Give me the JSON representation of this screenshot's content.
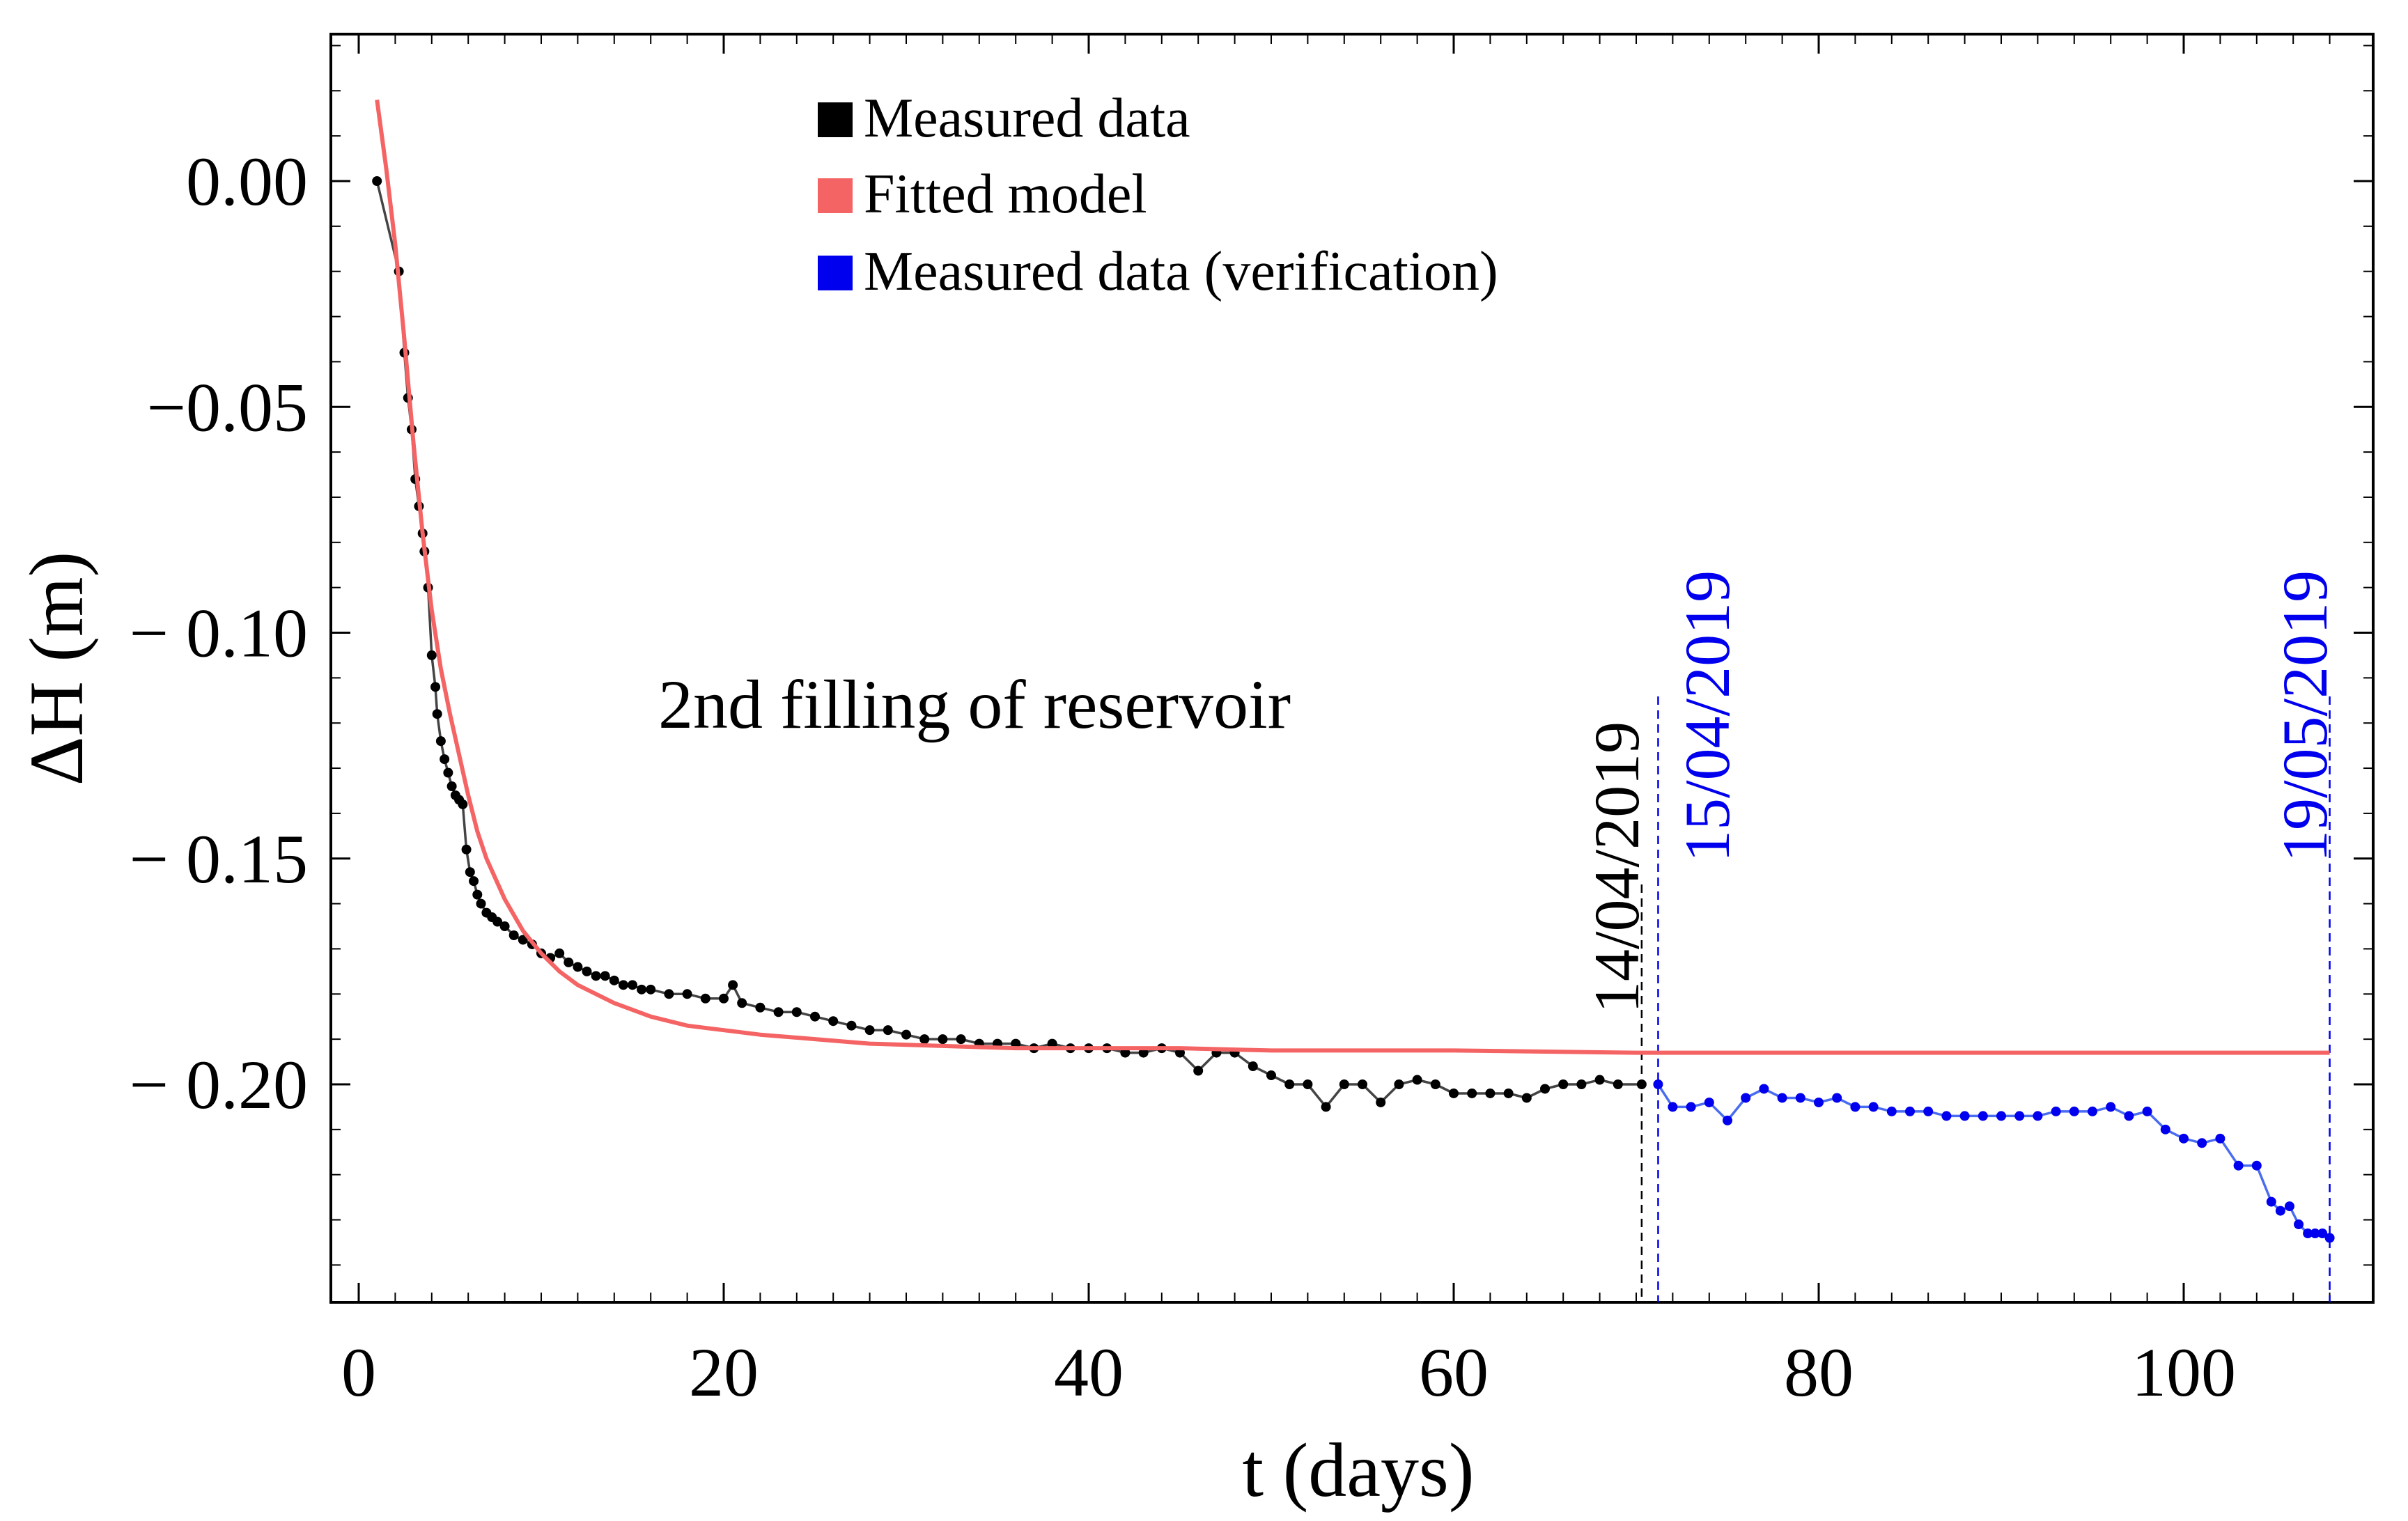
{
  "chart_data": {
    "type": "line",
    "title": "",
    "xlabel": "t (days)",
    "ylabel": "ΔH (m)",
    "xlim": [
      0,
      110
    ],
    "ylim": [
      -0.245,
      0.033
    ],
    "x_ticks": [
      0,
      20,
      40,
      60,
      80,
      100
    ],
    "x_tick_labels": [
      "0",
      "20",
      "40",
      "60",
      "80",
      "100"
    ],
    "y_ticks": [
      0.0,
      -0.05,
      -0.1,
      -0.15,
      -0.2
    ],
    "y_tick_labels": [
      "0.00",
      "−0.05",
      "− 0.10",
      "− 0.15",
      "− 0.20"
    ],
    "annotation": "2nd filling of reservoir",
    "legend": {
      "position": "top-center",
      "entries": [
        {
          "label": "Measured data",
          "color": "#000000"
        },
        {
          "label": "Fitted model",
          "color": "#f56464"
        },
        {
          "label": "Measured data (verification)",
          "color": "#0000ee"
        }
      ]
    },
    "vertical_markers": [
      {
        "x": 70.3,
        "label": "14/04/2019",
        "color": "#000000"
      },
      {
        "x": 71.2,
        "label": "15/04/2019",
        "color": "#0000ee"
      },
      {
        "x": 108.0,
        "label": "19/05/2019",
        "color": "#0000ee"
      }
    ],
    "series": [
      {
        "name": "Measured data",
        "color": "#000000",
        "x": [
          1.0,
          2.2,
          2.5,
          2.7,
          2.9,
          3.1,
          3.3,
          3.5,
          3.6,
          3.8,
          4.0,
          4.2,
          4.3,
          4.5,
          4.7,
          4.9,
          5.1,
          5.3,
          5.5,
          5.7,
          5.9,
          6.1,
          6.3,
          6.5,
          6.7,
          7.0,
          7.3,
          7.6,
          8.0,
          8.5,
          9.0,
          9.5,
          10.0,
          10.5,
          11.0,
          11.5,
          12.0,
          12.5,
          13.0,
          13.5,
          14.0,
          14.5,
          15.0,
          15.5,
          16.0,
          17.0,
          18.0,
          19.0,
          20.0,
          20.5,
          21.0,
          22.0,
          23.0,
          24.0,
          25.0,
          26.0,
          27.0,
          28.0,
          29.0,
          30.0,
          31.0,
          32.0,
          33.0,
          34.0,
          35.0,
          36.0,
          37.0,
          38.0,
          39.0,
          40.0,
          41.0,
          42.0,
          43.0,
          44.0,
          45.0,
          46.0,
          47.0,
          48.0,
          49.0,
          50.0,
          51.0,
          52.0,
          53.0,
          54.0,
          55.0,
          56.0,
          57.0,
          58.0,
          59.0,
          60.0,
          61.0,
          62.0,
          63.0,
          64.0,
          65.0,
          66.0,
          67.0,
          68.0,
          69.0,
          70.3
        ],
        "y": [
          0.0,
          -0.02,
          -0.038,
          -0.048,
          -0.055,
          -0.066,
          -0.072,
          -0.078,
          -0.082,
          -0.09,
          -0.105,
          -0.112,
          -0.118,
          -0.124,
          -0.128,
          -0.131,
          -0.134,
          -0.136,
          -0.137,
          -0.138,
          -0.148,
          -0.153,
          -0.155,
          -0.158,
          -0.16,
          -0.162,
          -0.163,
          -0.164,
          -0.165,
          -0.167,
          -0.168,
          -0.169,
          -0.171,
          -0.172,
          -0.171,
          -0.173,
          -0.174,
          -0.175,
          -0.176,
          -0.176,
          -0.177,
          -0.178,
          -0.178,
          -0.179,
          -0.179,
          -0.18,
          -0.18,
          -0.181,
          -0.181,
          -0.178,
          -0.182,
          -0.183,
          -0.184,
          -0.184,
          -0.185,
          -0.186,
          -0.187,
          -0.188,
          -0.188,
          -0.189,
          -0.19,
          -0.19,
          -0.19,
          -0.191,
          -0.191,
          -0.191,
          -0.192,
          -0.191,
          -0.192,
          -0.192,
          -0.192,
          -0.193,
          -0.193,
          -0.192,
          -0.193,
          -0.197,
          -0.193,
          -0.193,
          -0.196,
          -0.198,
          -0.2,
          -0.2,
          -0.205,
          -0.2,
          -0.2,
          -0.204,
          -0.2,
          -0.199,
          -0.2,
          -0.202,
          -0.202,
          -0.202,
          -0.202,
          -0.203,
          -0.201,
          -0.2,
          -0.2,
          -0.199,
          -0.2,
          -0.2
        ]
      },
      {
        "name": "Fitted model",
        "color": "#f56464",
        "x": [
          1.0,
          1.5,
          2.0,
          2.5,
          3.0,
          3.5,
          4.0,
          4.5,
          5.0,
          5.5,
          6.0,
          6.5,
          7.0,
          8.0,
          9.0,
          10.0,
          11.0,
          12.0,
          13.0,
          14.0,
          16.0,
          18.0,
          20.0,
          22.0,
          25.0,
          28.0,
          32.0,
          36.0,
          40.0,
          45.0,
          50.0,
          55.0,
          60.0,
          70.0,
          80.0,
          90.0,
          100.0,
          108.0
        ],
        "y": [
          0.018,
          0.003,
          -0.014,
          -0.035,
          -0.058,
          -0.078,
          -0.095,
          -0.108,
          -0.118,
          -0.127,
          -0.136,
          -0.144,
          -0.15,
          -0.159,
          -0.166,
          -0.171,
          -0.175,
          -0.178,
          -0.18,
          -0.182,
          -0.185,
          -0.187,
          -0.188,
          -0.189,
          -0.19,
          -0.191,
          -0.1915,
          -0.192,
          -0.192,
          -0.192,
          -0.1925,
          -0.1925,
          -0.1925,
          -0.193,
          -0.193,
          -0.193,
          -0.193,
          -0.193
        ]
      },
      {
        "name": "Measured data (verification)",
        "color": "#0000ee",
        "x": [
          71.2,
          72.0,
          73.0,
          74.0,
          75.0,
          76.0,
          77.0,
          78.0,
          79.0,
          80.0,
          81.0,
          82.0,
          83.0,
          84.0,
          85.0,
          86.0,
          87.0,
          88.0,
          89.0,
          90.0,
          91.0,
          92.0,
          93.0,
          94.0,
          95.0,
          96.0,
          97.0,
          98.0,
          99.0,
          100.0,
          101.0,
          102.0,
          103.0,
          104.0,
          104.8,
          105.3,
          105.8,
          106.3,
          106.8,
          107.2,
          107.6,
          108.0
        ],
        "y": [
          -0.2,
          -0.205,
          -0.205,
          -0.204,
          -0.208,
          -0.203,
          -0.201,
          -0.203,
          -0.203,
          -0.204,
          -0.203,
          -0.205,
          -0.205,
          -0.206,
          -0.206,
          -0.206,
          -0.207,
          -0.207,
          -0.207,
          -0.207,
          -0.207,
          -0.207,
          -0.206,
          -0.206,
          -0.206,
          -0.205,
          -0.207,
          -0.206,
          -0.21,
          -0.212,
          -0.213,
          -0.212,
          -0.218,
          -0.218,
          -0.226,
          -0.228,
          -0.227,
          -0.231,
          -0.233,
          -0.233,
          -0.233,
          -0.234
        ]
      }
    ]
  }
}
